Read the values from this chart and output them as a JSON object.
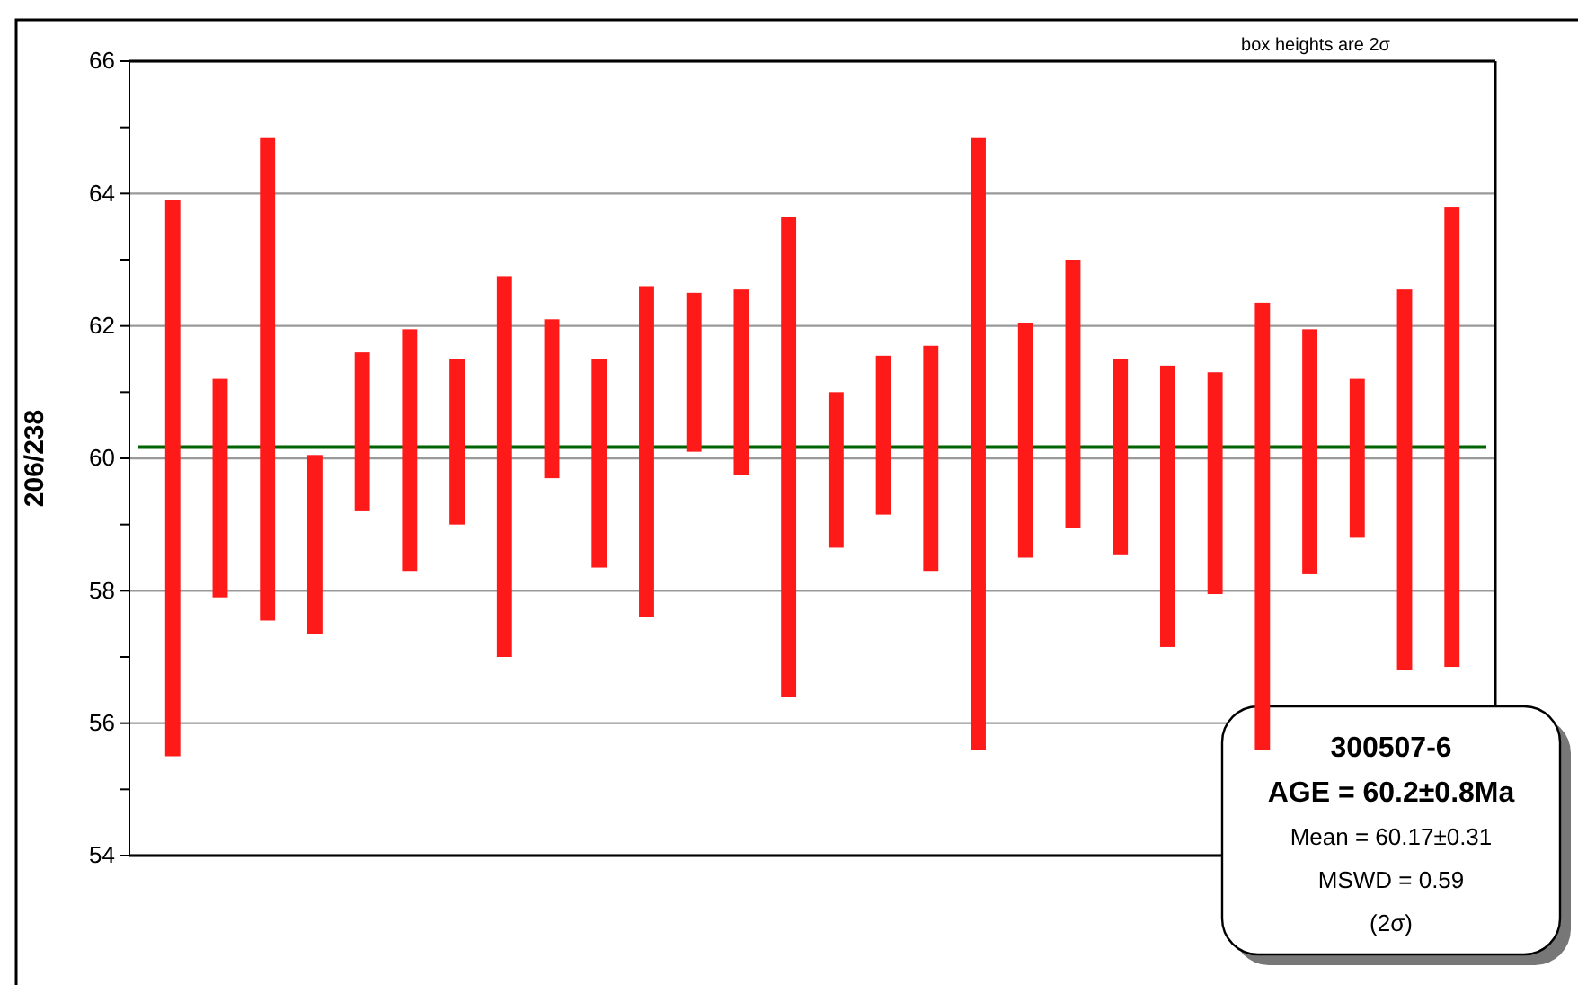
{
  "chart_data": {
    "type": "bar",
    "ylabel": "206/238",
    "categories": [
      null,
      null,
      null,
      null,
      null,
      null,
      null,
      null,
      null,
      null,
      null,
      null,
      null,
      null,
      null,
      null,
      null,
      null,
      null,
      null,
      null,
      null,
      null,
      null,
      null,
      null,
      null,
      null
    ],
    "base": [
      55.5,
      57.9,
      57.55,
      57.35,
      59.2,
      58.3,
      59.0,
      57.0,
      59.7,
      58.35,
      57.6,
      60.1,
      59.75,
      56.4,
      58.65,
      59.15,
      58.3,
      55.6,
      58.5,
      58.95,
      58.55,
      57.15,
      57.95,
      55.6,
      58.25,
      58.8,
      56.8,
      56.85
    ],
    "values": [
      8.4,
      3.3,
      7.3,
      2.7,
      2.4,
      3.65,
      2.5,
      5.75,
      2.4,
      3.15,
      5.0,
      2.4,
      2.8,
      7.25,
      2.35,
      2.4,
      3.4,
      9.25,
      3.55,
      4.05,
      2.95,
      4.25,
      3.35,
      6.75,
      3.7,
      2.4,
      5.75,
      6.95
    ],
    "color": "#ff1a1a",
    "ylim": [
      54,
      66
    ],
    "yticks": [
      54,
      {
        "value": 55,
        "label": null
      },
      56,
      {
        "value": 57,
        "label": null
      },
      58,
      {
        "value": 59,
        "label": null
      },
      60,
      {
        "value": 61,
        "label": null
      },
      62,
      {
        "value": 63,
        "label": null
      },
      64,
      {
        "value": 65,
        "label": null
      },
      66
    ],
    "grid": "y",
    "ref_lines": [
      {
        "axis": "y",
        "value": 60.17,
        "color": "#006400"
      }
    ],
    "annotations": [
      "box heights are 2σ",
      "300507-6",
      "AGE = 60.2±0.8Ma",
      "Mean = 60.17±0.31",
      "MSWD = 0.59",
      "(2σ)"
    ]
  }
}
